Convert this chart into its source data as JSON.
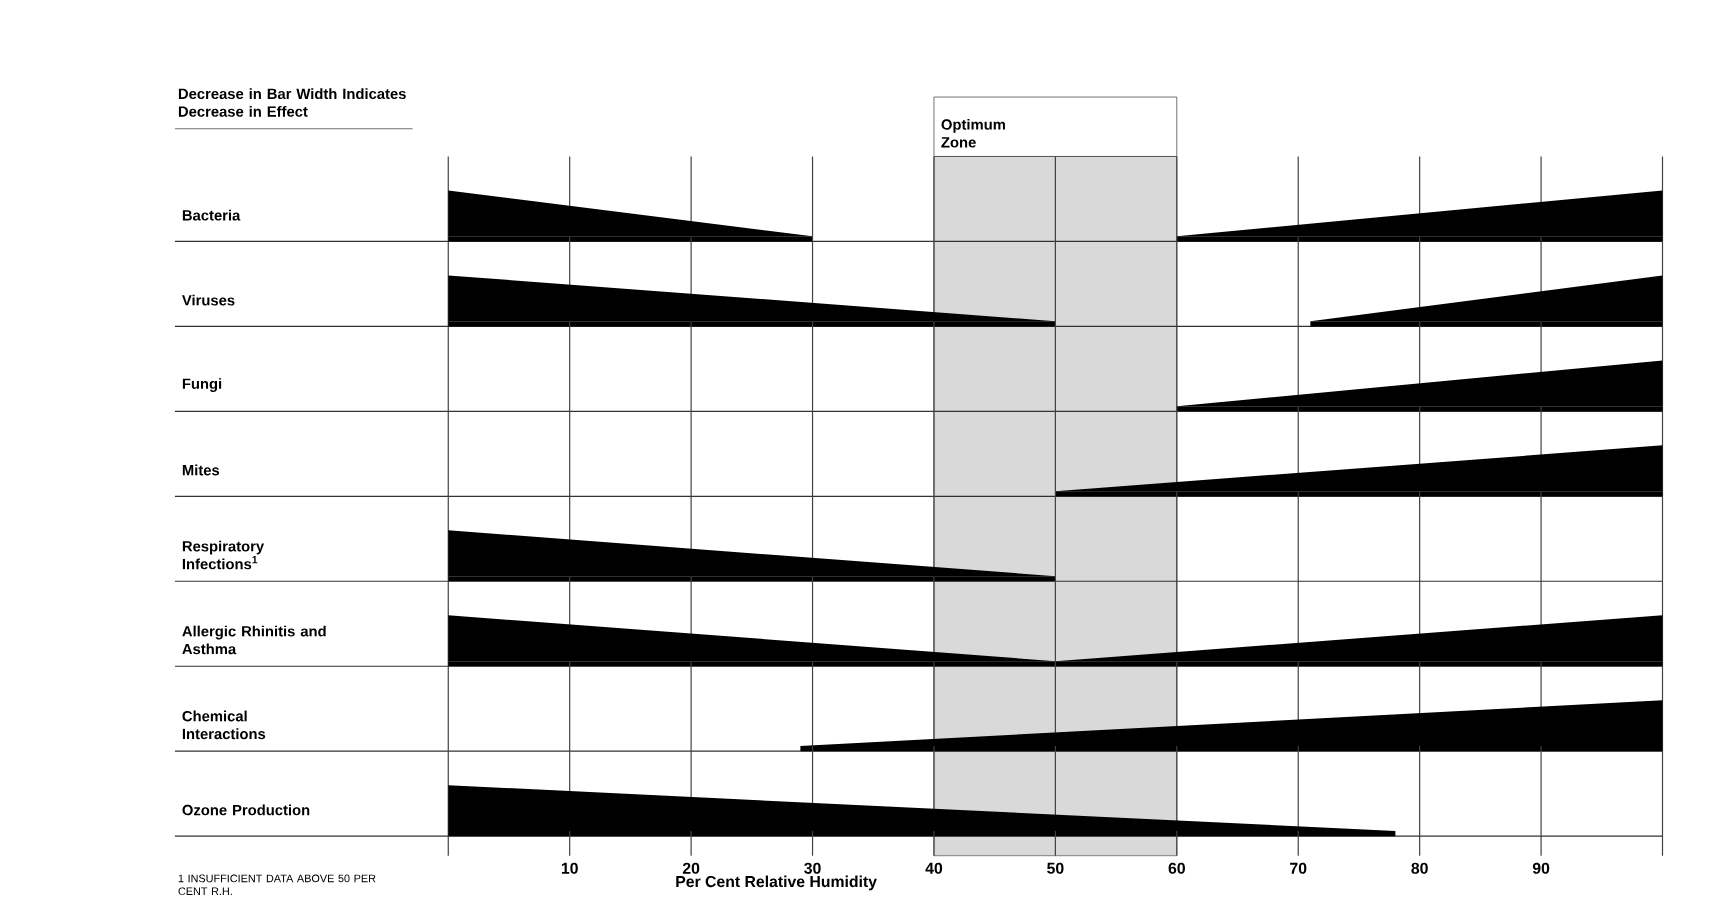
{
  "chart_data": {
    "type": "bar",
    "orientation": "horizontal",
    "categories": [
      "Bacteria",
      "Viruses",
      "Fungi",
      "Mites",
      "Respiratory Infections$^{1}$",
      "Allergic Rhinitis and Asthma",
      "Chemical Interactions",
      "Ozone Production"
    ],
    "series": [
      {
        "color": "#000000",
        "base": [
          0,
          0,
          null,
          null,
          0,
          0,
          null,
          0
        ],
        "values": [
          30,
          50,
          null,
          null,
          50,
          50,
          null,
          78
        ]
      },
      {
        "color": "#000000",
        "base": [
          60,
          71,
          60,
          50,
          null,
          50,
          29,
          null
        ],
        "values": [
          40,
          29,
          40,
          50,
          null,
          50,
          71,
          null
        ]
      }
    ],
    "xlabel": "Per Cent Relative Humidity",
    "xlim": [
      0,
      100
    ],
    "xticks": [
      10,
      20,
      30,
      40,
      50,
      60,
      70,
      80,
      90
    ],
    "grid": "x",
    "bands": [
      {
        "axis": "x",
        "from": 40,
        "to": 60,
        "label": "Optimum Zone",
        "color": "#d9d9d9"
      }
    ],
    "annotations": [
      "Decrease in Bar Width Indicates Decrease in Effect",
      "1 INSUFFICIENT DATA ABOVE 50 PER CENT R.H."
    ]
  }
}
